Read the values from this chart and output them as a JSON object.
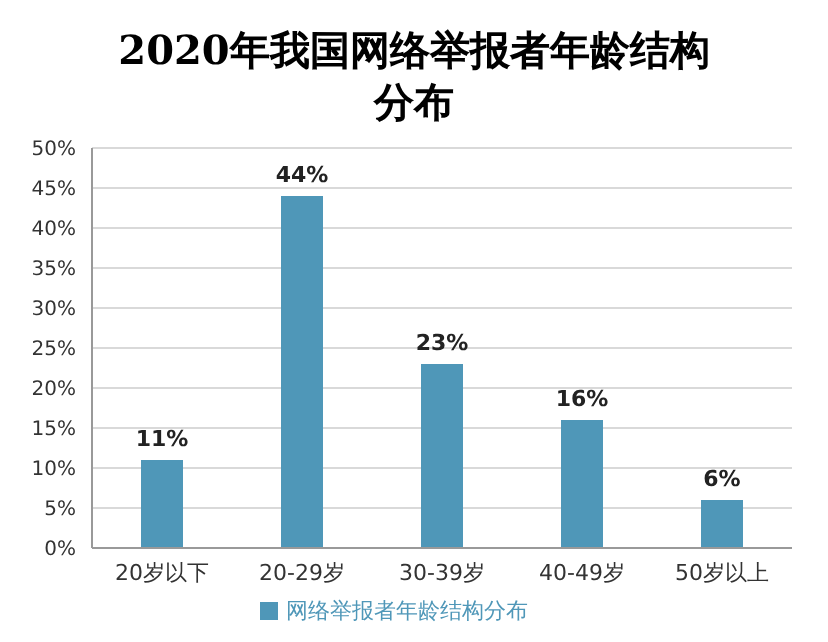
{
  "chart_data": {
    "type": "bar",
    "title": "2020年我国网络举报者年龄结构分布",
    "categories": [
      "20岁以下",
      "20-29岁",
      "30-39岁",
      "40-49岁",
      "50岁以上"
    ],
    "series": [
      {
        "name": "网络举报者年龄结构分布",
        "color": "#4f97b8",
        "values": [
          11,
          44,
          23,
          16,
          6
        ],
        "value_labels": [
          "11%",
          "44%",
          "23%",
          "16%",
          "6%"
        ]
      }
    ],
    "ylim": [
      0,
      50
    ],
    "yticks": [
      {
        "value": 0,
        "label": "0%"
      },
      {
        "value": 5,
        "label": "5%"
      },
      {
        "value": 10,
        "label": "10%"
      },
      {
        "value": 15,
        "label": "15%"
      },
      {
        "value": 20,
        "label": "20%"
      },
      {
        "value": 25,
        "label": "25%"
      },
      {
        "value": 30,
        "label": "30%"
      },
      {
        "value": 35,
        "label": "35%"
      },
      {
        "value": 40,
        "label": "40%"
      },
      {
        "value": 45,
        "label": "45%"
      },
      {
        "value": 50,
        "label": "50%"
      }
    ],
    "grid": "y",
    "legend": "bottom"
  }
}
